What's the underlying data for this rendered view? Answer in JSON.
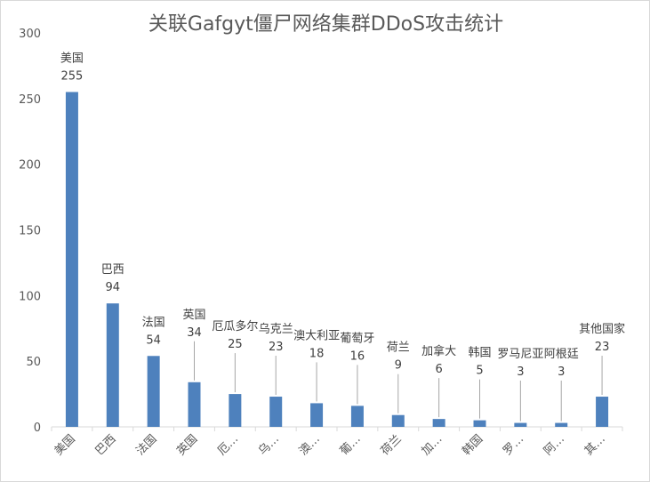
{
  "chart_data": {
    "type": "bar",
    "title": "关联Gafgyt僵尸网络集群DDoS攻击统计",
    "categories": [
      "美国",
      "巴西",
      "法国",
      "英国",
      "厄…",
      "乌…",
      "澳…",
      "葡…",
      "荷兰",
      "加…",
      "韩国",
      "罗…",
      "阿…",
      "其…"
    ],
    "data_labels": [
      "美国",
      "巴西",
      "法国",
      "英国",
      "厄瓜多尔",
      "乌克兰",
      "澳大利亚",
      "葡萄牙",
      "荷兰",
      "加拿大",
      "韩国",
      "罗马尼亚",
      "阿根廷",
      "其他国家"
    ],
    "values": [
      255,
      94,
      54,
      34,
      25,
      23,
      18,
      16,
      9,
      6,
      5,
      3,
      3,
      23
    ],
    "ylim": [
      0,
      300
    ],
    "yticks": [
      0,
      50,
      100,
      150,
      200,
      250,
      300
    ],
    "xlabel": "",
    "ylabel": "",
    "grid": false,
    "bar_color": "#4e81bd"
  }
}
